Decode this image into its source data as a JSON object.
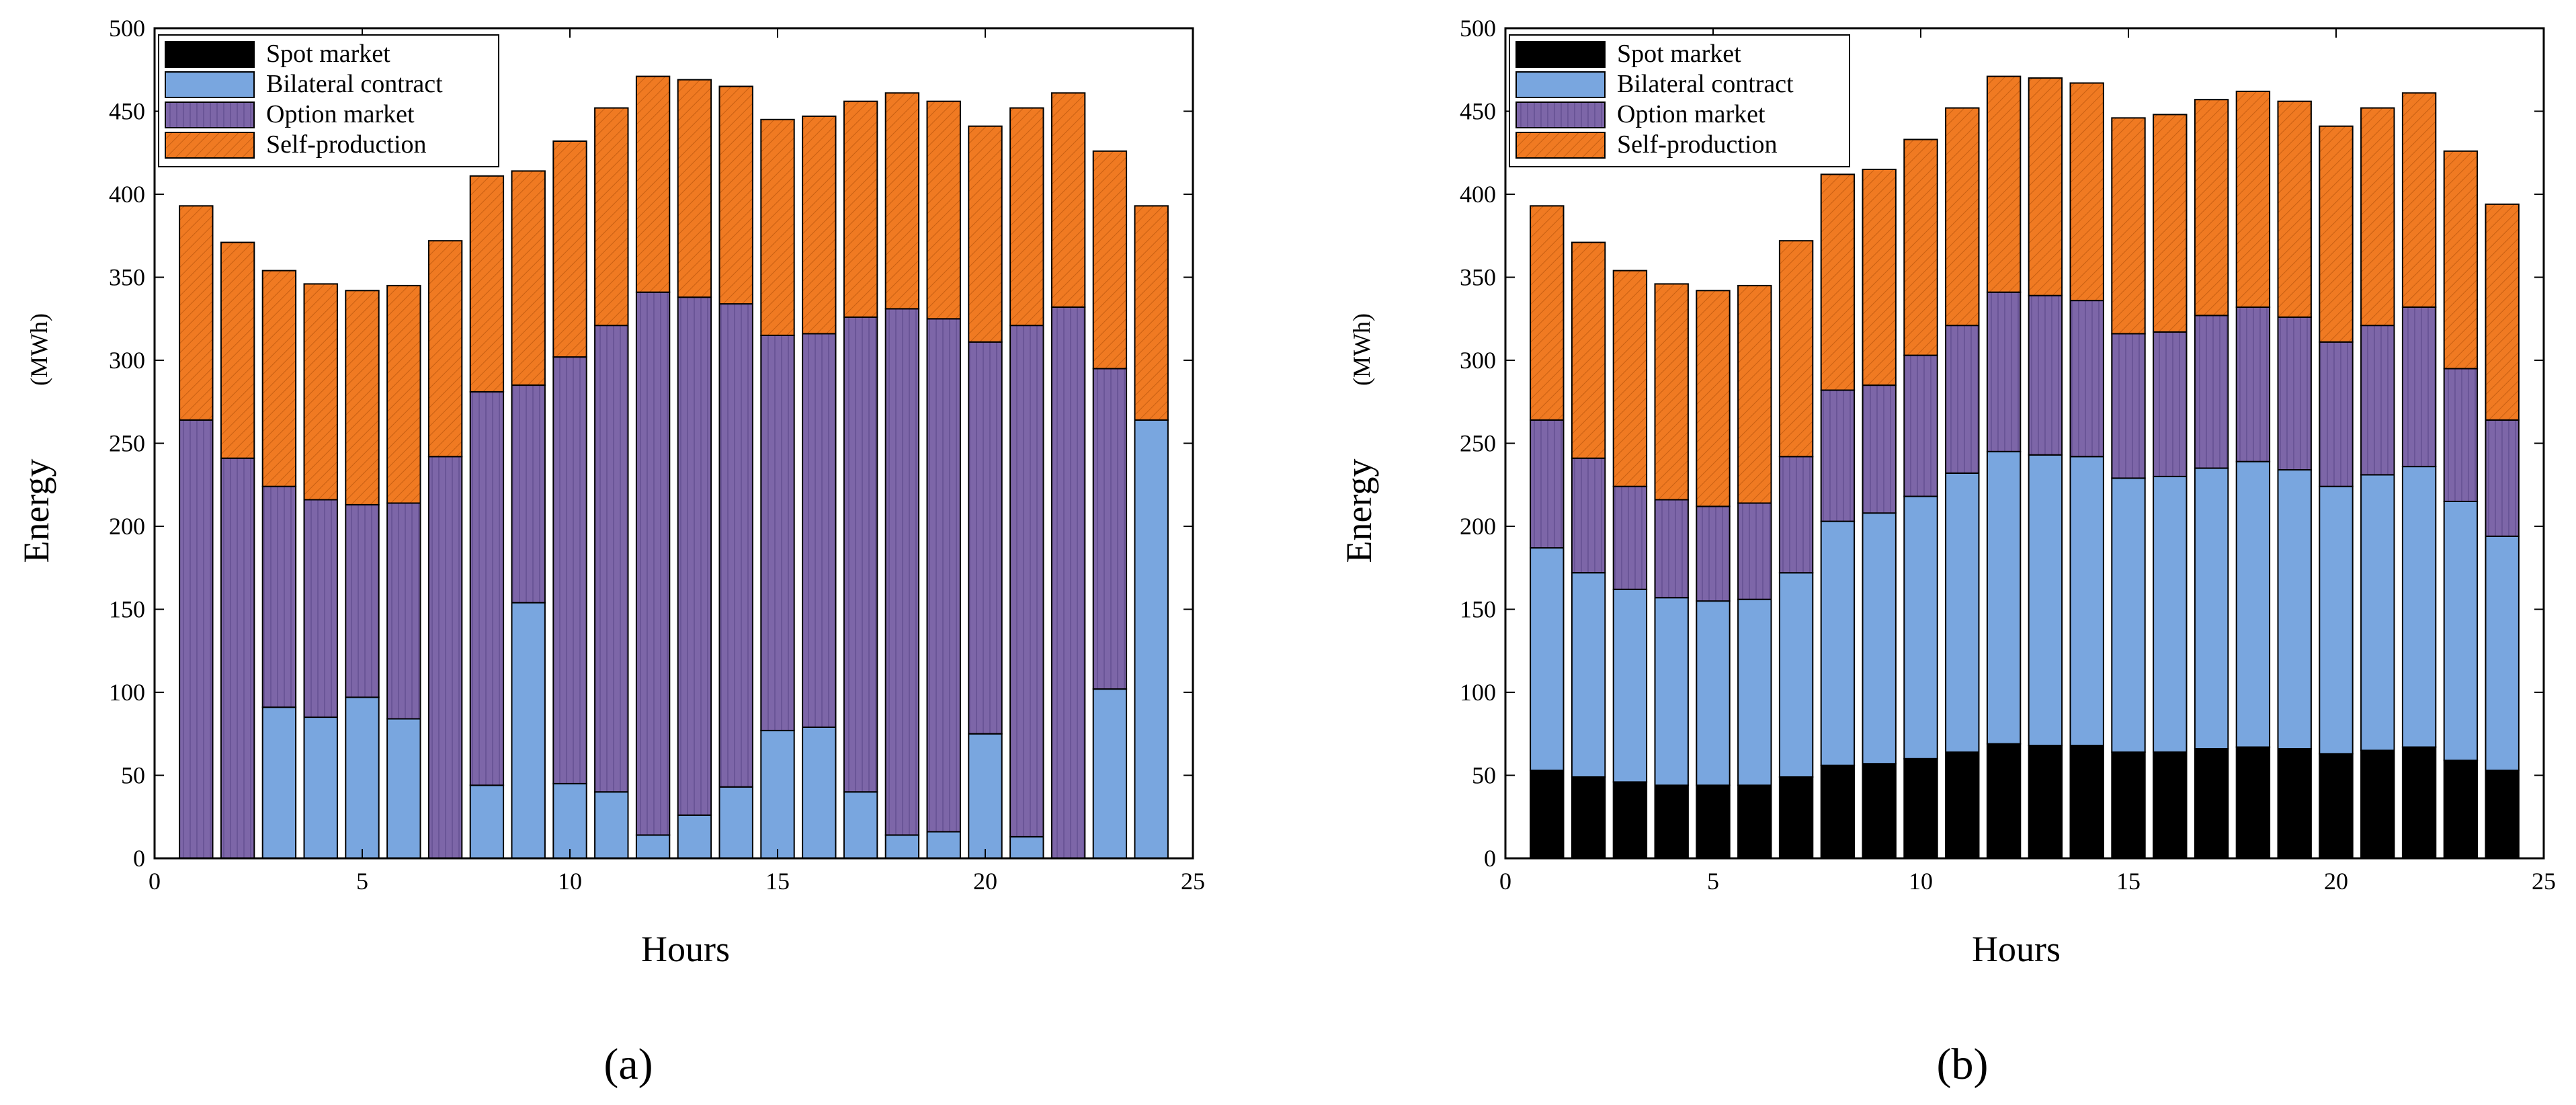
{
  "chart_data": [
    {
      "type": "bar",
      "stacked": true,
      "panel_label": "(a)",
      "xlabel": "Hours",
      "ylabel_main": "Energy",
      "ylabel_unit": "(MWh)",
      "xlim": [
        0,
        25
      ],
      "ylim": [
        0,
        500
      ],
      "xticks": [
        0,
        5,
        10,
        15,
        20,
        25
      ],
      "yticks": [
        0,
        50,
        100,
        150,
        200,
        250,
        300,
        350,
        400,
        450,
        500
      ],
      "legend_position": "top-left",
      "categories": [
        1,
        2,
        3,
        4,
        5,
        6,
        7,
        8,
        9,
        10,
        11,
        12,
        13,
        14,
        15,
        16,
        17,
        18,
        19,
        20,
        21,
        22,
        23,
        24
      ],
      "series": [
        {
          "name": "Spot market",
          "color": "#000000",
          "values": [
            0,
            0,
            0,
            0,
            0,
            0,
            0,
            0,
            0,
            0,
            0,
            0,
            0,
            0,
            0,
            0,
            0,
            0,
            0,
            0,
            0,
            0,
            0,
            0
          ]
        },
        {
          "name": "Bilateral contract",
          "color": "#79a6df",
          "values": [
            0,
            0,
            91,
            85,
            97,
            84,
            0,
            44,
            154,
            45,
            40,
            14,
            26,
            43,
            77,
            79,
            40,
            14,
            16,
            75,
            13,
            0,
            102,
            264
          ]
        },
        {
          "name": "Option market",
          "color": "#7d66a8",
          "values": [
            264,
            241,
            133,
            131,
            116,
            130,
            242,
            237,
            131,
            257,
            281,
            327,
            312,
            291,
            238,
            237,
            286,
            317,
            309,
            236,
            308,
            332,
            193,
            0
          ]
        },
        {
          "name": "Self-production",
          "color": "#f07a22",
          "values": [
            129,
            130,
            130,
            130,
            129,
            131,
            130,
            130,
            129,
            130,
            131,
            130,
            131,
            131,
            130,
            131,
            130,
            130,
            131,
            130,
            131,
            129,
            131,
            129
          ]
        }
      ]
    },
    {
      "type": "bar",
      "stacked": true,
      "panel_label": "(b)",
      "xlabel": "Hours",
      "ylabel_main": "Energy",
      "ylabel_unit": "(MWh)",
      "xlim": [
        0,
        25
      ],
      "ylim": [
        0,
        500
      ],
      "xticks": [
        0,
        5,
        10,
        15,
        20,
        25
      ],
      "yticks": [
        0,
        50,
        100,
        150,
        200,
        250,
        300,
        350,
        400,
        450,
        500
      ],
      "legend_position": "top-left",
      "categories": [
        1,
        2,
        3,
        4,
        5,
        6,
        7,
        8,
        9,
        10,
        11,
        12,
        13,
        14,
        15,
        16,
        17,
        18,
        19,
        20,
        21,
        22,
        23,
        24
      ],
      "series": [
        {
          "name": "Spot market",
          "color": "#000000",
          "values": [
            53,
            49,
            46,
            44,
            44,
            44,
            49,
            56,
            57,
            60,
            64,
            69,
            68,
            68,
            64,
            64,
            66,
            67,
            66,
            63,
            65,
            67,
            59,
            53
          ]
        },
        {
          "name": "Bilateral contract",
          "color": "#79a6df",
          "values": [
            134,
            123,
            116,
            113,
            111,
            112,
            123,
            147,
            151,
            158,
            168,
            176,
            175,
            174,
            165,
            166,
            169,
            172,
            168,
            161,
            166,
            169,
            156,
            141
          ]
        },
        {
          "name": "Option market",
          "color": "#7d66a8",
          "values": [
            77,
            69,
            62,
            59,
            57,
            58,
            70,
            79,
            77,
            85,
            89,
            96,
            96,
            94,
            87,
            87,
            92,
            93,
            92,
            87,
            90,
            96,
            80,
            70
          ]
        },
        {
          "name": "Self-production",
          "color": "#f07a22",
          "values": [
            129,
            130,
            130,
            130,
            130,
            131,
            130,
            130,
            130,
            130,
            131,
            130,
            131,
            131,
            130,
            131,
            130,
            130,
            130,
            130,
            131,
            129,
            131,
            130
          ]
        }
      ]
    }
  ]
}
